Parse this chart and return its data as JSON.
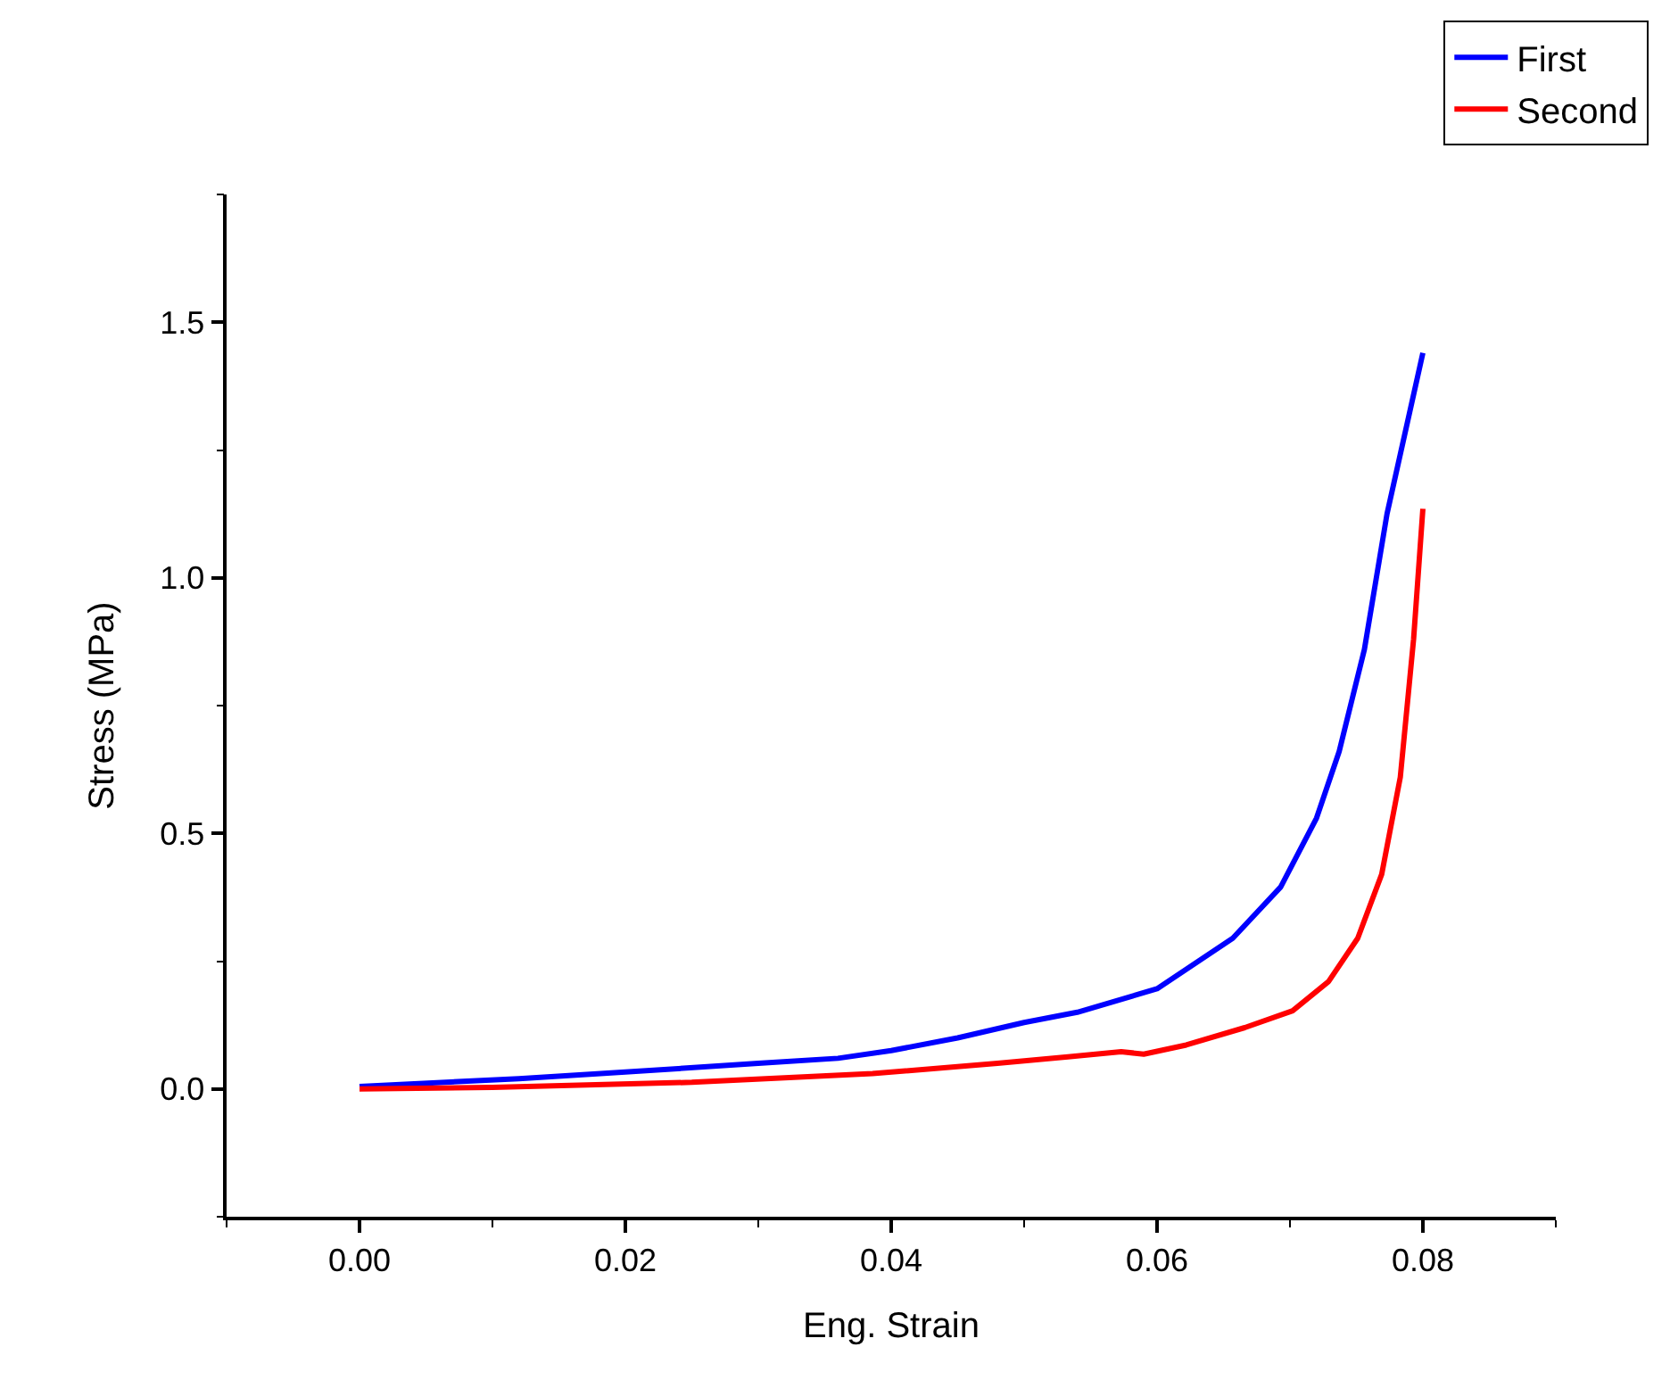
{
  "chart_data": {
    "type": "line",
    "xlabel": "Eng. Strain",
    "ylabel": "Stress (MPa)",
    "xlim": [
      -0.01,
      0.09
    ],
    "xticks": [
      {
        "value": 0,
        "label": "0.00"
      },
      {
        "value": 0.02,
        "label": "0.02"
      },
      {
        "value": 0.04,
        "label": "0.04"
      },
      {
        "value": 0.06,
        "label": "0.06"
      },
      {
        "value": 0.08,
        "label": "0.08"
      }
    ],
    "ylim": [
      -0.25,
      1.75
    ],
    "yticks": [
      {
        "value": 0,
        "label": "0.0"
      },
      {
        "value": 0.5,
        "label": "0.5"
      },
      {
        "value": 1,
        "label": "1.0"
      },
      {
        "value": 1.5,
        "label": "1.5"
      }
    ],
    "grid": false,
    "legend": "top right",
    "marker": "none",
    "line_style": "solid",
    "series": [
      {
        "name": "First",
        "color": "#0000ff",
        "x": [
          0,
          0.012,
          0.02,
          0.03,
          0.036,
          0.04,
          0.045,
          0.05,
          0.054,
          0.06,
          0.0657,
          0.0693,
          0.072,
          0.0737,
          0.0756,
          0.0773,
          0.08
        ],
        "values": [
          0.005,
          0.02,
          0.033,
          0.05,
          0.06,
          0.075,
          0.1,
          0.13,
          0.15,
          0.196,
          0.295,
          0.395,
          0.53,
          0.66,
          0.86,
          1.125,
          1.44
        ]
      },
      {
        "name": "Second",
        "color": "#ff0000",
        "x": [
          0,
          0.01,
          0.025,
          0.0386,
          0.048,
          0.0533,
          0.0573,
          0.059,
          0.0622,
          0.0666,
          0.0702,
          0.0729,
          0.0751,
          0.0769,
          0.0783,
          0.0793,
          0.08
        ],
        "values": [
          0,
          0.003,
          0.013,
          0.03,
          0.05,
          0.063,
          0.073,
          0.068,
          0.086,
          0.12,
          0.153,
          0.21,
          0.295,
          0.42,
          0.61,
          0.88,
          1.135
        ]
      }
    ]
  }
}
